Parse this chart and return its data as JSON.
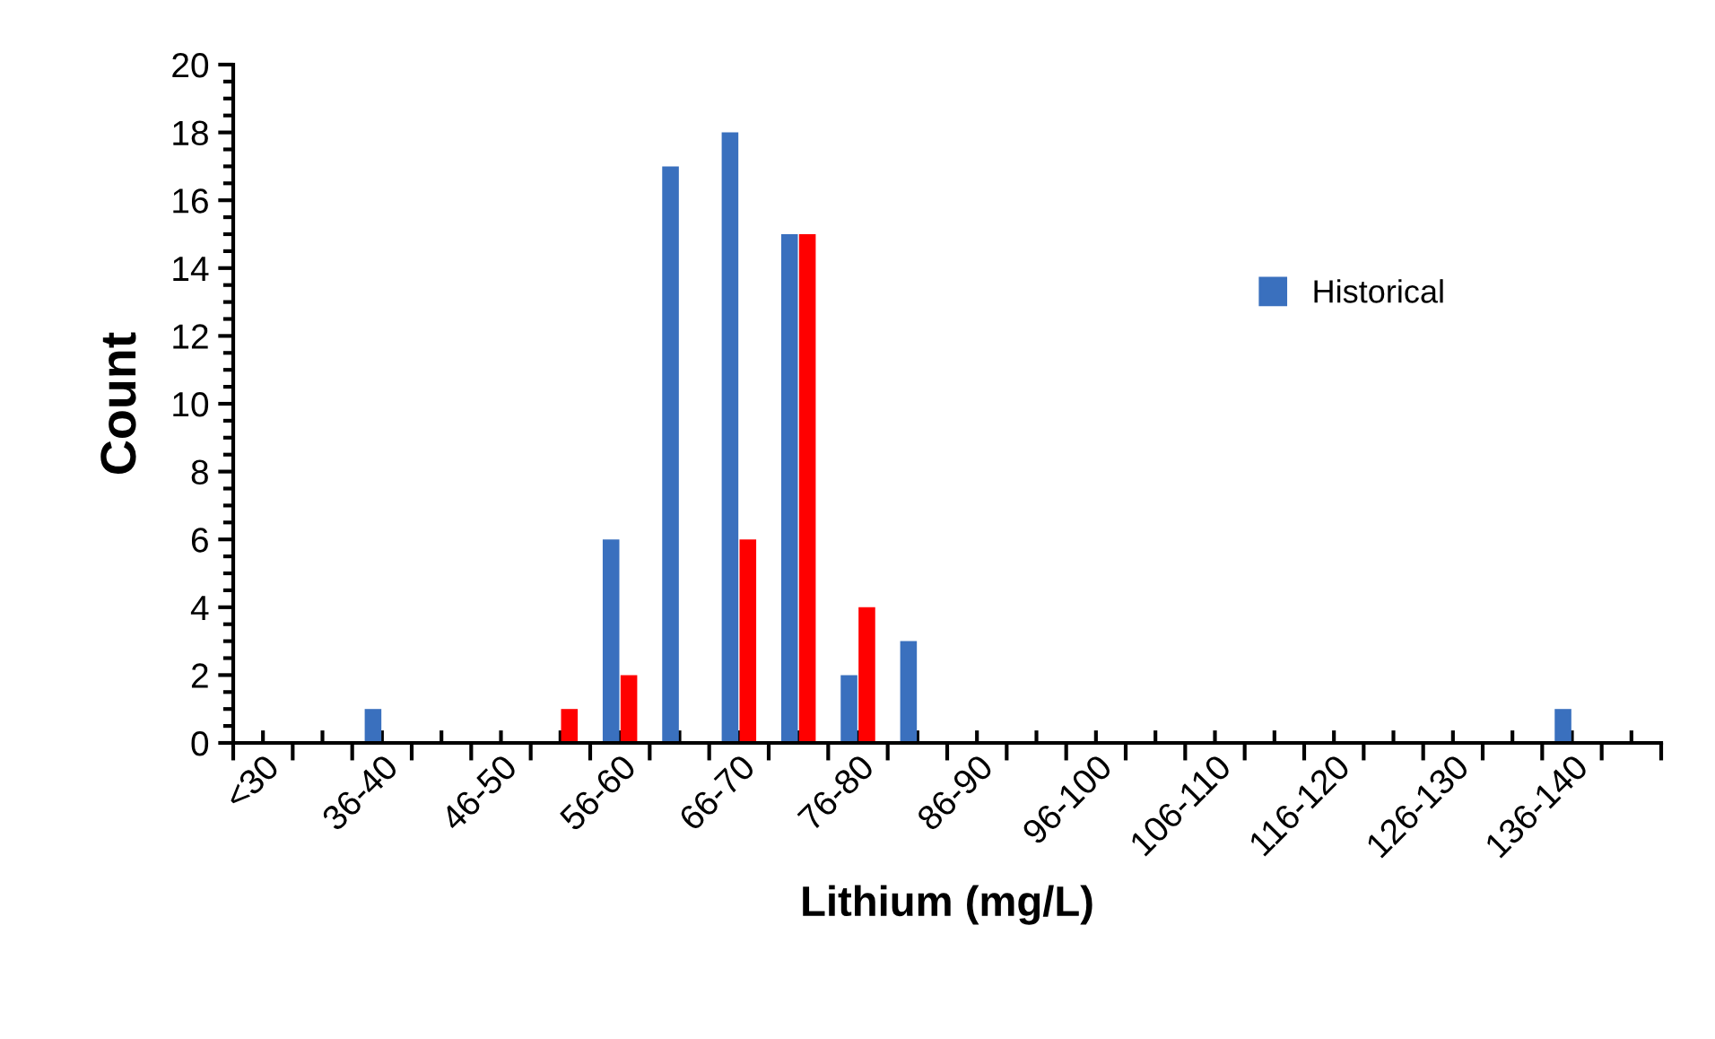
{
  "chart_data": {
    "type": "bar",
    "xlabel": "Lithium (mg/L)",
    "ylabel": "Count",
    "categories": [
      "<30",
      null,
      "36-40",
      null,
      "46-50",
      null,
      "56-60",
      null,
      "66-70",
      null,
      "76-80",
      null,
      "86-90",
      null,
      "96-100",
      null,
      "106-110",
      null,
      "116-120",
      null,
      "126-130",
      null,
      "136-140",
      null
    ],
    "series": [
      {
        "name": "Historical",
        "color": "#3a70be",
        "values": [
          0,
          0,
          1,
          0,
          0,
          0,
          6,
          17,
          18,
          15,
          2,
          3,
          0,
          0,
          0,
          0,
          0,
          0,
          0,
          0,
          0,
          0,
          1,
          0
        ]
      },
      {
        "color": "#ff0000",
        "values": [
          0,
          0,
          0,
          0,
          0,
          1,
          2,
          0,
          6,
          15,
          4,
          0,
          0,
          0,
          0,
          0,
          0,
          0,
          0,
          0,
          0,
          0,
          0,
          0
        ]
      }
    ],
    "ylim": [
      0,
      20
    ],
    "yticks": [
      0,
      2,
      4,
      6,
      8,
      10,
      12,
      14,
      16,
      18,
      20
    ],
    "grid": false,
    "legend": "top right"
  }
}
